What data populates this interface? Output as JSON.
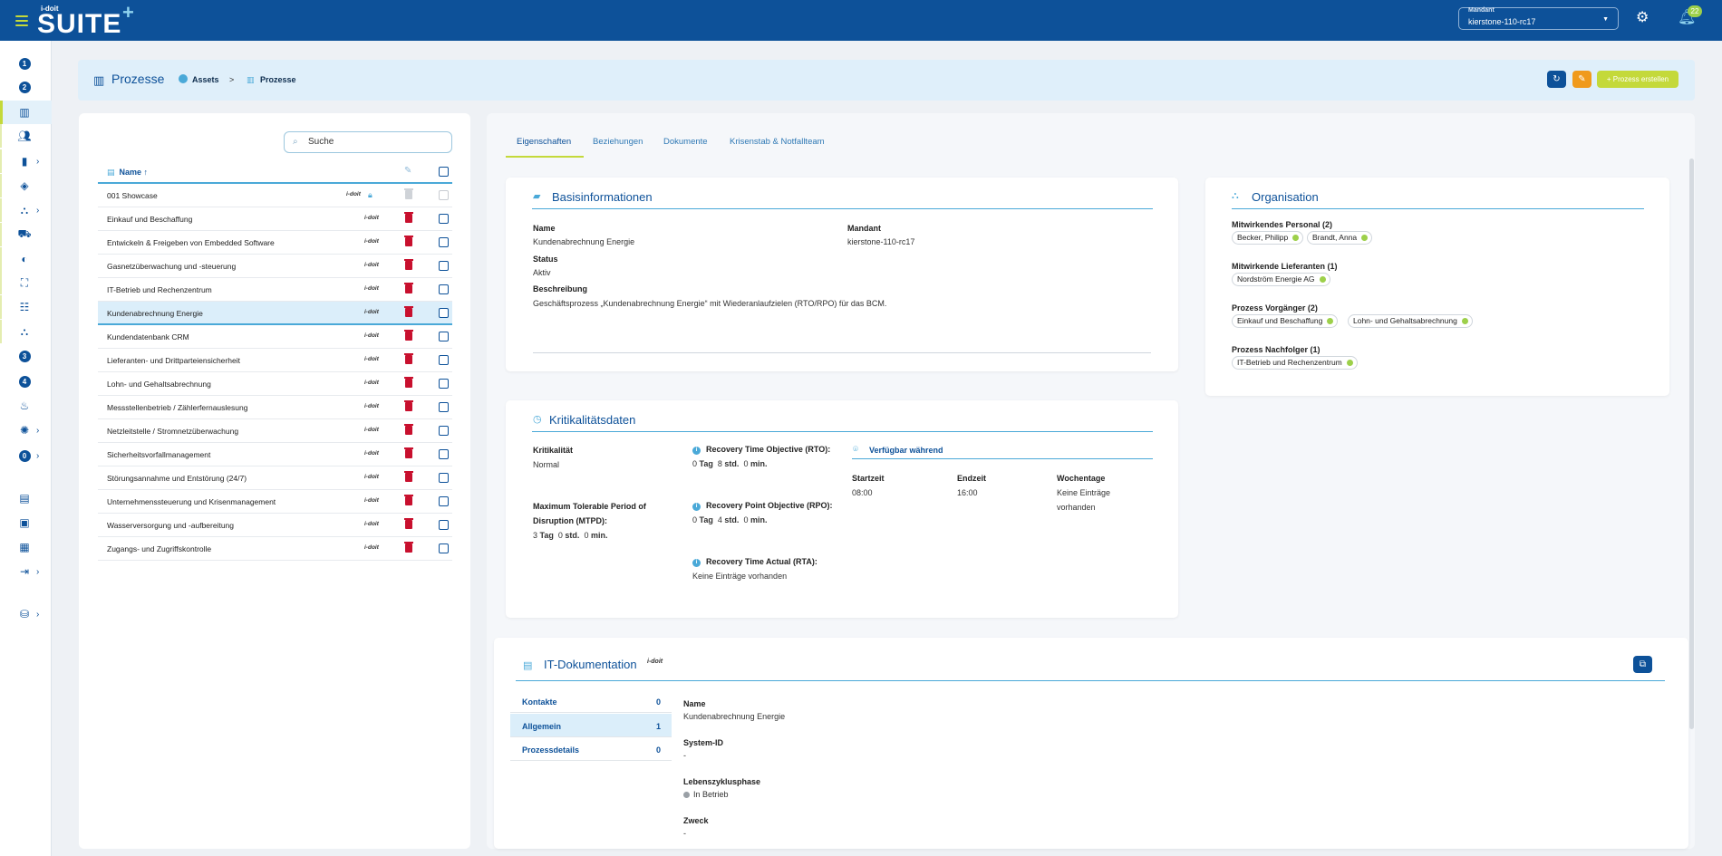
{
  "topbar": {
    "logo_small": "i-doit",
    "logo_main": "SUITE",
    "logo_plus": "+",
    "mandant_label": "Mandant",
    "mandant_value": "kierstone-110-rc17",
    "notifications_count": "22"
  },
  "sidebar": {
    "items": [
      {
        "icon": "number-1-icon",
        "text": "1"
      },
      {
        "icon": "number-2-icon",
        "text": "2"
      },
      {
        "icon": "bar-chart-icon",
        "text": ""
      },
      {
        "icon": "people-icon",
        "text": ""
      },
      {
        "icon": "clipboard-icon",
        "text": ""
      },
      {
        "icon": "layers-icon",
        "text": ""
      },
      {
        "icon": "hierarchy-icon",
        "text": ""
      },
      {
        "icon": "truck-icon",
        "text": ""
      },
      {
        "icon": "toggle-icon",
        "text": ""
      },
      {
        "icon": "scan-icon",
        "text": ""
      },
      {
        "icon": "tree-list-icon",
        "text": ""
      },
      {
        "icon": "network-icon",
        "text": ""
      },
      {
        "icon": "number-3-icon",
        "text": "3"
      },
      {
        "icon": "number-4-icon",
        "text": "4"
      },
      {
        "icon": "flame-icon",
        "text": ""
      },
      {
        "icon": "alarm-light-icon",
        "text": ""
      },
      {
        "icon": "number-0-icon",
        "text": "0"
      },
      {
        "icon": "report-icon",
        "text": ""
      },
      {
        "icon": "image-icon",
        "text": ""
      },
      {
        "icon": "document-icon",
        "text": ""
      },
      {
        "icon": "import-icon",
        "text": ""
      },
      {
        "icon": "database-icon",
        "text": ""
      }
    ]
  },
  "header": {
    "title": "Prozesse",
    "breadcrumb_assets": "Assets",
    "breadcrumb_sep": ">",
    "breadcrumb_current": "Prozesse",
    "create_button": "+ Prozess erstellen"
  },
  "list": {
    "search_placeholder": "Suche",
    "col_name": "Name ↑",
    "brand": "i-doit",
    "rows": [
      "001 Showcase",
      "Einkauf und Beschaffung",
      "Entwickeln & Freigeben von Embedded Software",
      "Gasnetzüberwachung und -steuerung",
      "IT-Betrieb und Rechenzentrum",
      "Kundenabrechnung Energie",
      "Kundendatenbank CRM",
      "Lieferanten- und Drittparteiensicherheit",
      "Lohn- und Gehaltsabrechnung",
      "Messstellenbetrieb / Zählerfernauslesung",
      "Netzleitstelle / Stromnetzüberwachung",
      "Sicherheitsvorfallmanagement",
      "Störungsannahme und Entstörung (24/7)",
      "Unternehmenssteuerung und Krisenmanagement",
      "Wasserversorgung und -aufbereitung",
      "Zugangs- und Zugriffskontrolle"
    ]
  },
  "tabs": [
    "Eigenschaften",
    "Beziehungen",
    "Dokumente",
    "Krisenstab & Notfallteam"
  ],
  "basis": {
    "title": "Basisinformationen",
    "name_label": "Name",
    "name_value": "Kundenabrechnung Energie",
    "mandant_label": "Mandant",
    "mandant_value": "kierstone-110-rc17",
    "status_label": "Status",
    "status_value": "Aktiv",
    "desc_label": "Beschreibung",
    "desc_value": "Geschäftsprozess „Kundenabrechnung Energie“ mit Wiederanlaufzielen (RTO/RPO) für das BCM."
  },
  "organisation": {
    "title": "Organisation",
    "personal_label": "Mitwirkendes Personal (2)",
    "personal": [
      "Becker, Philipp",
      "Brandt, Anna"
    ],
    "lieferanten_label": "Mitwirkende Lieferanten (1)",
    "lieferanten": [
      "Nordström Energie AG"
    ],
    "vorgaenger_label": "Prozess Vorgänger (2)",
    "vorgaenger": [
      "Einkauf und Beschaffung",
      "Lohn- und Gehaltsabrechnung"
    ],
    "nachfolger_label": "Prozess Nachfolger (1)",
    "nachfolger": [
      "IT-Betrieb und Rechenzentrum"
    ]
  },
  "krit": {
    "title": "Kritikalitätsdaten",
    "krit_label": "Kritikalität",
    "krit_value": "Normal",
    "mtpd_label_1": "Maximum Tolerable Period of",
    "mtpd_label_2": "Disruption (MTPD):",
    "mtpd_num1": "3",
    "mtpd_u1": "Tag",
    "mtpd_num2": "0",
    "mtpd_u2": "std.",
    "mtpd_num3": "0",
    "mtpd_u3": "min.",
    "rto_label": "Recovery Time Objective (RTO):",
    "rto_num1": "0",
    "rto_u1": "Tag",
    "rto_num2": "8",
    "rto_u2": "std.",
    "rto_num3": "0",
    "rto_u3": "min.",
    "rpo_label": "Recovery Point Objective (RPO):",
    "rpo_num1": "0",
    "rpo_u1": "Tag",
    "rpo_num2": "4",
    "rpo_u2": "std.",
    "rpo_num3": "0",
    "rpo_u3": "min.",
    "rta_label": "Recovery Time Actual (RTA):",
    "rta_value": "Keine Einträge vorhanden",
    "avail_title": "Verfügbar während",
    "start_label": "Startzeit",
    "start_value": "08:00",
    "end_label": "Endzeit",
    "end_value": "16:00",
    "days_label": "Wochentage",
    "days_value_1": "Keine Einträge",
    "days_value_2": "vorhanden"
  },
  "itdoc": {
    "title": "IT-Dokumentation",
    "brand": "i-doit",
    "nav": [
      {
        "label": "Kontakte",
        "count": "0"
      },
      {
        "label": "Allgemein",
        "count": "1"
      },
      {
        "label": "Prozessdetails",
        "count": "0"
      }
    ],
    "name_label": "Name",
    "name_value": "Kundenabrechnung Energie",
    "sysid_label": "System-ID",
    "sysid_value": "-",
    "lifecycle_label": "Lebenszyklusphase",
    "lifecycle_value": "In Betrieb",
    "zweck_label": "Zweck",
    "zweck_value": "-"
  },
  "colors": {
    "primary": "#0d5199",
    "accent": "#c4d93a",
    "danger": "#c8102e",
    "orange": "#f09a1c",
    "light_blue": "#4aa9d8"
  }
}
